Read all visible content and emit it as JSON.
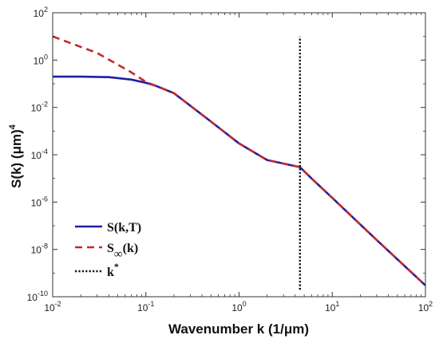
{
  "chart_data": {
    "type": "line",
    "xlabel": "Wavenumber k (1/μm)",
    "ylabel": "S(k) (μm)",
    "ylabel_exp": "4",
    "xscale": "log",
    "yscale": "log",
    "xlim": [
      0.01,
      100
    ],
    "ylim": [
      1e-10,
      100
    ],
    "x_ticks": [
      {
        "value": 0.01,
        "base": "10",
        "exp": "-2"
      },
      {
        "value": 0.1,
        "base": "10",
        "exp": "-1"
      },
      {
        "value": 1,
        "base": "10",
        "exp": "0"
      },
      {
        "value": 10,
        "base": "10",
        "exp": "1"
      },
      {
        "value": 100,
        "base": "10",
        "exp": "2"
      }
    ],
    "y_ticks": [
      {
        "value": 1e-10,
        "base": "10",
        "exp": "-10"
      },
      {
        "value": 1e-08,
        "base": "10",
        "exp": "-8"
      },
      {
        "value": 1e-06,
        "base": "10",
        "exp": "-6"
      },
      {
        "value": 0.0001,
        "base": "10",
        "exp": "-4"
      },
      {
        "value": 0.01,
        "base": "10",
        "exp": "-2"
      },
      {
        "value": 1,
        "base": "10",
        "exp": "0"
      },
      {
        "value": 100,
        "base": "10",
        "exp": "2"
      }
    ],
    "grid": false,
    "legend_position": "bottom-left",
    "series": [
      {
        "name": "S(k,T)",
        "legend_main": "S(k,T)",
        "legend_sub": "",
        "legend_sup": "",
        "color": "#1f1fa8",
        "style": "solid",
        "points": [
          [
            0.01,
            0.2
          ],
          [
            0.02,
            0.2
          ],
          [
            0.04,
            0.19
          ],
          [
            0.07,
            0.15
          ],
          [
            0.1,
            0.11
          ],
          [
            0.13,
            0.08
          ],
          [
            0.2,
            0.04
          ],
          [
            0.5,
            0.0025
          ],
          [
            1,
            0.0003
          ],
          [
            2,
            6e-05
          ],
          [
            4.5,
            3e-05
          ],
          [
            6,
            1e-05
          ],
          [
            10,
            1.5e-06
          ],
          [
            30,
            2.5e-08
          ],
          [
            100,
            3e-10
          ]
        ]
      },
      {
        "name": "S∞(k)",
        "legend_main": "S",
        "legend_sub": "∞",
        "legend_sup": "",
        "legend_tail": "(k)",
        "color": "#c62828",
        "style": "dashed",
        "points": [
          [
            0.01,
            10
          ],
          [
            0.03,
            2
          ],
          [
            0.07,
            0.3
          ],
          [
            0.1,
            0.12
          ],
          [
            0.13,
            0.08
          ],
          [
            0.2,
            0.04
          ],
          [
            0.5,
            0.0025
          ],
          [
            1,
            0.0003
          ],
          [
            2,
            6e-05
          ],
          [
            4.5,
            3e-05
          ],
          [
            6,
            1e-05
          ],
          [
            10,
            1.5e-06
          ],
          [
            30,
            2.5e-08
          ],
          [
            100,
            3e-10
          ]
        ]
      },
      {
        "name": "k*",
        "legend_main": "k",
        "legend_sub": "",
        "legend_sup": "*",
        "color": "#111111",
        "style": "dotted",
        "points": [
          [
            4.5,
            2e-10
          ],
          [
            4.5,
            10
          ]
        ]
      }
    ]
  }
}
